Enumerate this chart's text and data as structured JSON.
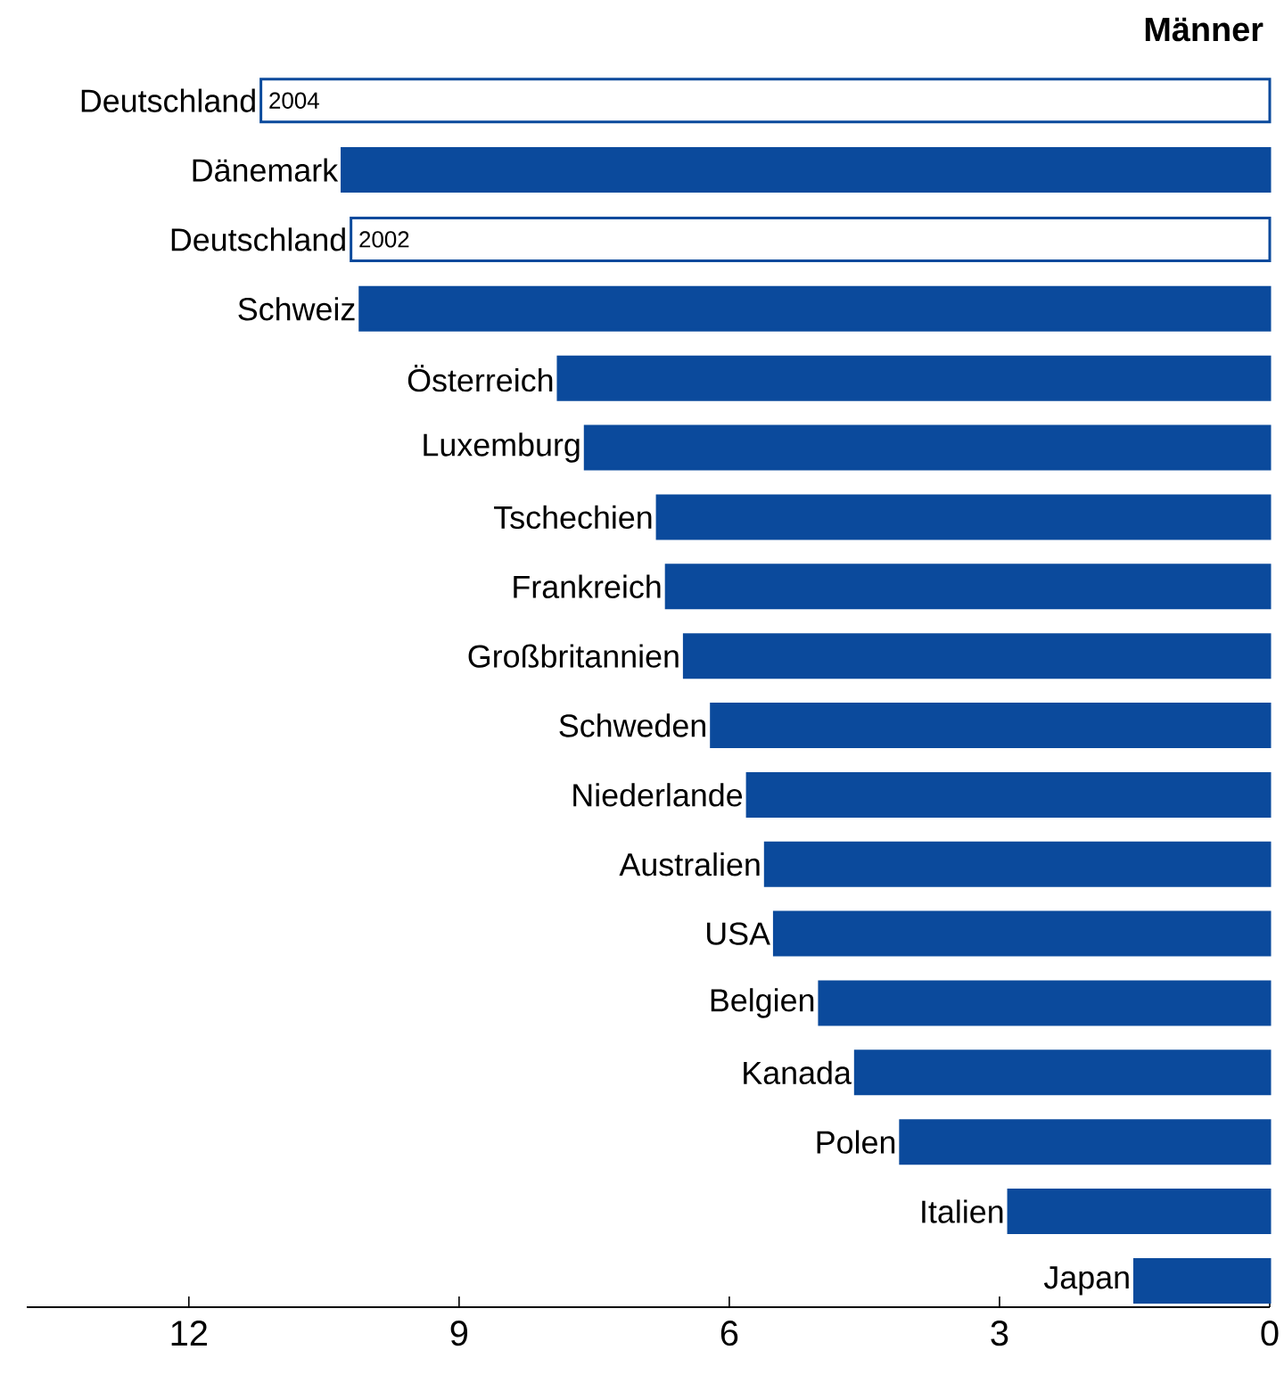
{
  "chart_data": {
    "type": "bar",
    "orientation": "horizontal",
    "title": "Männer",
    "categories": [
      "Deutschland",
      "Dänemark",
      "Deutschland",
      "Schweiz",
      "Österreich",
      "Luxemburg",
      "Tschechien",
      "Frankreich",
      "Großbritannien",
      "Schweden",
      "Niederlande",
      "Australien",
      "USA",
      "Belgien",
      "Kanada",
      "Polen",
      "Italien",
      "Japan"
    ],
    "series": [
      {
        "color": "#0b4a9c",
        "values": [
          11.2,
          10.3,
          10.2,
          10.1,
          7.9,
          7.6,
          6.8,
          6.7,
          6.5,
          6.2,
          5.8,
          5.6,
          5.5,
          5.0,
          4.6,
          4.1,
          2.9,
          1.5
        ],
        "colors": [
          "#ffffff",
          "#0b4a9c",
          "#ffffff",
          "#0b4a9c",
          "#0b4a9c",
          "#0b4a9c",
          "#0b4a9c",
          "#0b4a9c",
          "#0b4a9c",
          "#0b4a9c",
          "#0b4a9c",
          "#0b4a9c",
          "#0b4a9c",
          "#0b4a9c",
          "#0b4a9c",
          "#0b4a9c",
          "#0b4a9c",
          "#0b4a9c"
        ]
      }
    ],
    "annotations": [
      "2004",
      "2002"
    ],
    "xlim": [
      13.8,
      0
    ],
    "xticks": [
      12,
      9,
      6,
      3,
      0
    ]
  }
}
